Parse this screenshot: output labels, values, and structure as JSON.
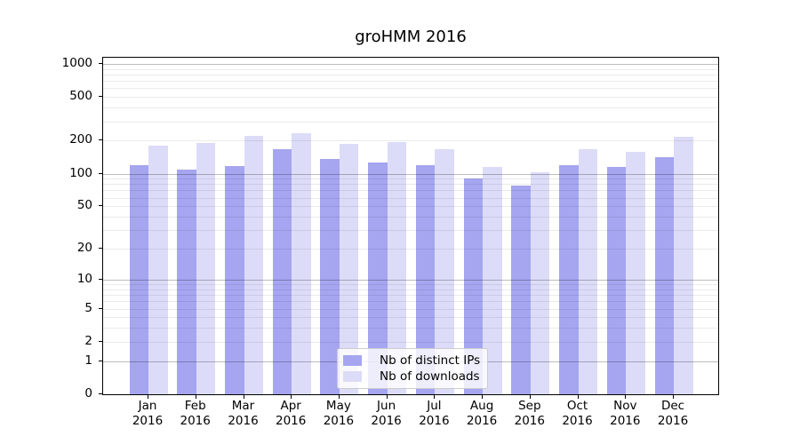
{
  "title": "groHMM 2016",
  "chart_data": {
    "type": "bar",
    "title": "groHMM 2016",
    "categories": [
      "Jan 2016",
      "Feb 2016",
      "Mar 2016",
      "Apr 2016",
      "May 2016",
      "Jun 2016",
      "Jul 2016",
      "Aug 2016",
      "Sep 2016",
      "Oct 2016",
      "Nov 2016",
      "Dec 2016"
    ],
    "series": [
      {
        "name": "Nb of distinct IPs",
        "color": "#a5a5f0",
        "values": [
          120,
          109,
          117,
          168,
          137,
          127,
          120,
          90,
          78,
          119,
          115,
          142
        ]
      },
      {
        "name": "Nb of downloads",
        "color": "#dcdcf8",
        "values": [
          180,
          190,
          220,
          235,
          188,
          195,
          168,
          115,
          103,
          167,
          158,
          218
        ]
      }
    ],
    "xlabel": "",
    "ylabel": "",
    "yscale": "log10(value+1)",
    "ylim": [
      0,
      1170
    ],
    "yticks": [
      0,
      1,
      2,
      5,
      10,
      20,
      50,
      100,
      200,
      500,
      1000
    ],
    "grid": "horizontal, minor light lines at 2-9 per decade, major lines at powers of 10",
    "legend_position": "bottom-center-inside"
  },
  "legend": {
    "items": [
      {
        "label": "Nb of distinct IPs"
      },
      {
        "label": "Nb of downloads"
      }
    ]
  },
  "colors": {
    "distinct_ips_bar": "#a5a5f0",
    "downloads_bar": "#dcdcf8",
    "axis": "#000000",
    "major_gridline": "#bfbfbf",
    "minor_gridline": "#ebebeb",
    "background": "#ffffff"
  }
}
